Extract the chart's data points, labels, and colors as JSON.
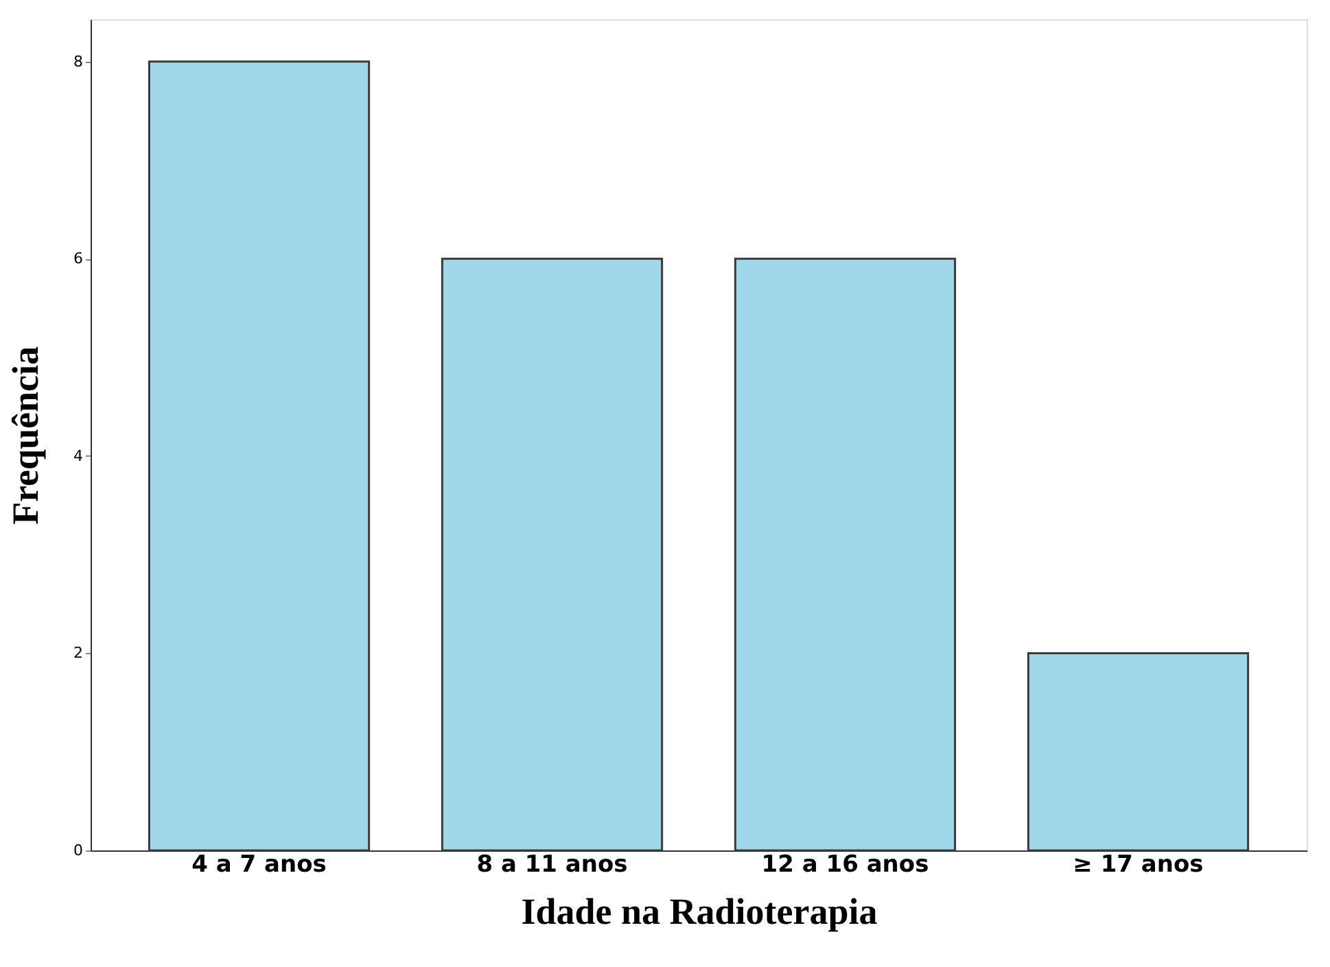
{
  "chart_data": {
    "type": "bar",
    "xlabel": "Idade na Radioterapia",
    "ylabel": "Frequência",
    "categories": [
      "4 a 7 anos",
      "8 a 11 anos",
      "12 a 16 anos",
      "≥ 17 anos"
    ],
    "values": [
      8,
      6,
      6,
      2
    ],
    "color": "#a0d8e9",
    "ylim": [
      0,
      8.43
    ],
    "yticks": [
      0,
      2,
      4,
      6,
      8
    ],
    "grid": false
  }
}
